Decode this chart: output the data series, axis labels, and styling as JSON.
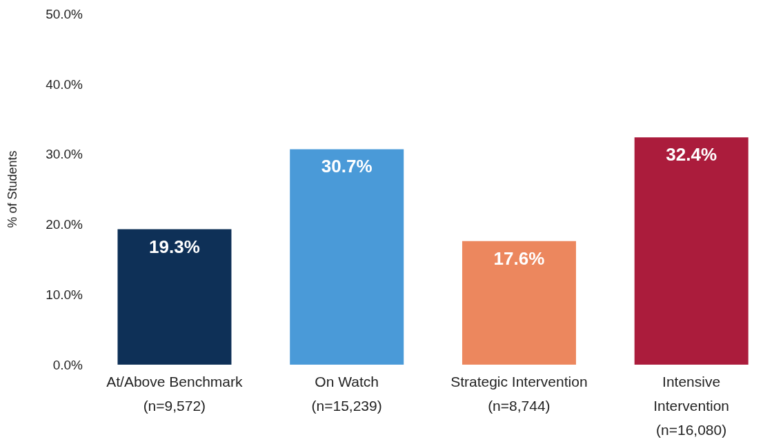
{
  "chart_data": {
    "type": "bar",
    "ylabel": "% of Students",
    "categories": [
      "At/Above Benchmark\n(n=9,572)",
      "On Watch\n(n=15,239)",
      "Strategic Intervention\n(n=8,744)",
      "Intensive\nIntervention\n(n=16,080)"
    ],
    "values": [
      19.3,
      30.7,
      17.6,
      32.4
    ],
    "colors": [
      "#0e3057",
      "#4a9ad8",
      "#ec875e",
      "#ab1c3c"
    ],
    "value_labels": [
      "19.3%",
      "30.7%",
      "17.6%",
      "32.4%"
    ],
    "ylim": [
      0,
      50
    ],
    "yticks": [
      {
        "value": 0,
        "label": "0.0%"
      },
      {
        "value": 10,
        "label": "10.0%"
      },
      {
        "value": 20,
        "label": "20.0%"
      },
      {
        "value": 30,
        "label": "30.0%"
      },
      {
        "value": 40,
        "label": "40.0%"
      },
      {
        "value": 50,
        "label": "50.0%"
      }
    ],
    "grid": false,
    "legend": false
  }
}
